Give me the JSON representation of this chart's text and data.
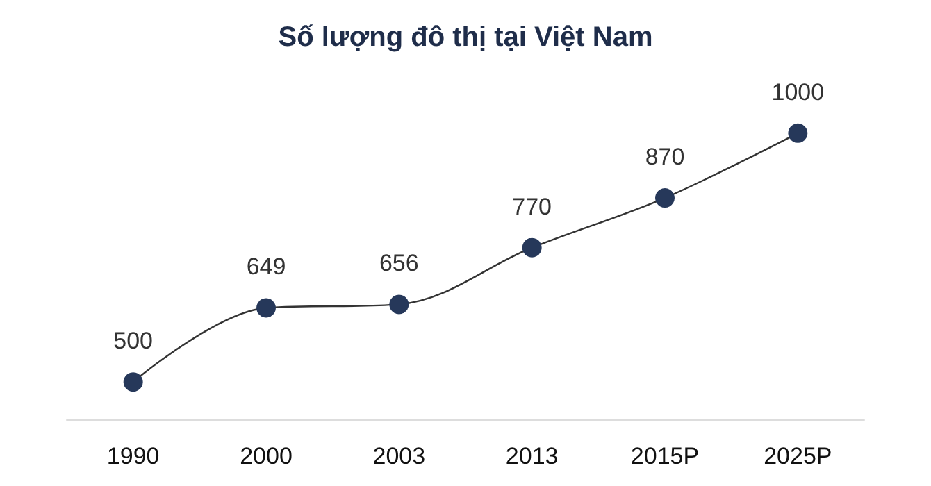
{
  "chart_data": {
    "type": "line",
    "title": "Số lượng đô thị tại Việt Nam",
    "categories": [
      "1990",
      "2000",
      "2003",
      "2013",
      "2015P",
      "2025P"
    ],
    "series": [
      {
        "color": "#26385a",
        "values": [
          500,
          649,
          656,
          770,
          870,
          1000
        ]
      }
    ],
    "data_labels": true,
    "marker": "circle",
    "line_style": "solid",
    "grid": false,
    "tick_labels": "x"
  }
}
